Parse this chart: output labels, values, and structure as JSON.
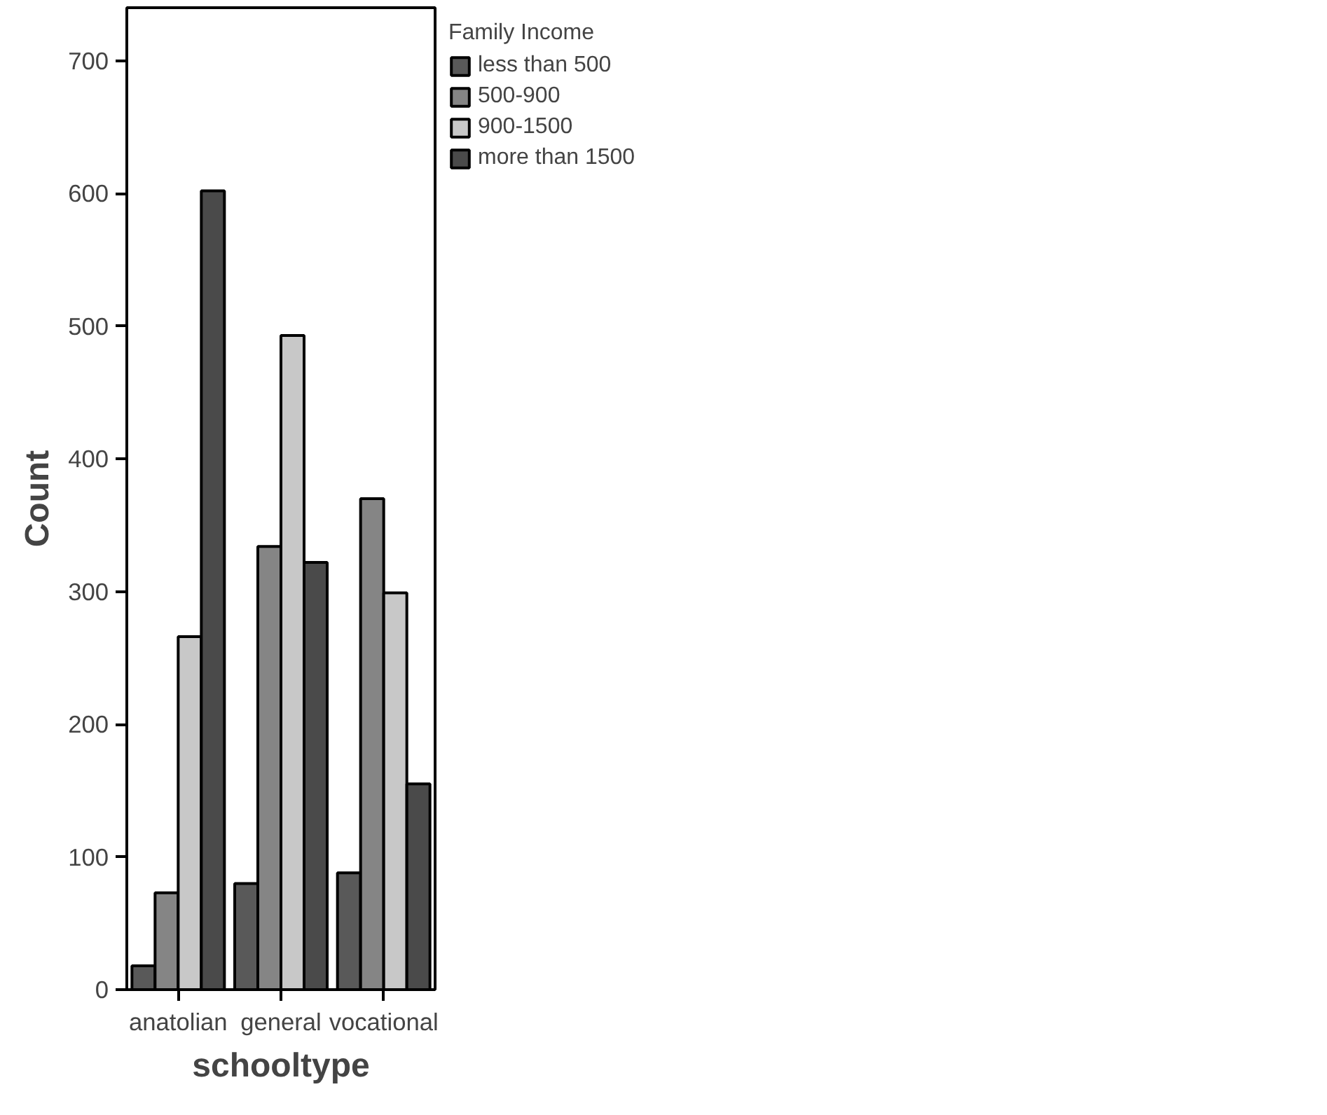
{
  "chart_data": {
    "type": "bar",
    "xlabel": "schooltype",
    "ylabel": "Count",
    "legend_title": "Family Income",
    "categories": [
      "anatolian",
      "general",
      "vocational"
    ],
    "series": [
      {
        "name": "less than 500",
        "color": "#595959",
        "values": [
          18,
          80,
          88
        ]
      },
      {
        "name": "500-900",
        "color": "#858585",
        "values": [
          73,
          334,
          370
        ]
      },
      {
        "name": "900-1500",
        "color": "#c8c8c8",
        "values": [
          266,
          493,
          299
        ]
      },
      {
        "name": "more than 1500",
        "color": "#4a4a4a",
        "values": [
          602,
          322,
          155
        ]
      }
    ],
    "ylim": [
      0,
      740
    ],
    "yticks": [
      0,
      100,
      200,
      300,
      400,
      500,
      600,
      700
    ],
    "grid": false,
    "legend": "top right"
  }
}
